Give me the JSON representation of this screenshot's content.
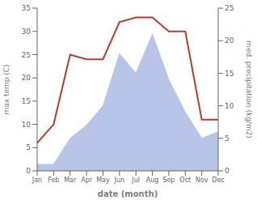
{
  "chart_data": {
    "type": "line",
    "categories": [
      "Jan",
      "Feb",
      "Mar",
      "Apr",
      "May",
      "Jun",
      "Jul",
      "Aug",
      "Sep",
      "Oct",
      "Nov",
      "Dec"
    ],
    "series": [
      {
        "type": "area",
        "axis": "y2",
        "color": "#b8c4e8",
        "values": [
          1,
          1,
          5,
          7,
          10,
          18,
          15,
          21,
          14,
          9,
          5,
          6
        ]
      },
      {
        "type": "line",
        "color": "#c0392b",
        "values": [
          6,
          10,
          25,
          24,
          24,
          32,
          33,
          33,
          30,
          30,
          11,
          11
        ]
      }
    ],
    "xlabel": "date (month)",
    "ylabel": "max temp (C)",
    "y2label": "med. precipitation (kg/m2)",
    "ylim": [
      0,
      35
    ],
    "yticks": [
      0,
      5,
      10,
      15,
      20,
      25,
      30,
      35
    ],
    "y2lim": [
      0,
      25
    ],
    "y2ticks": [
      0,
      5,
      10,
      15,
      20,
      25
    ],
    "grid": false
  }
}
